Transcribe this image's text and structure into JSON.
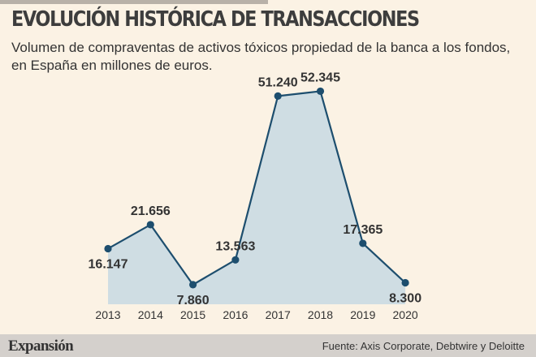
{
  "header": {
    "title": "EVOLUCIÓN HISTÓRICA DE TRANSACCIONES",
    "subtitle": "Volumen de compraventas de activos tóxicos propiedad de la banca a los fondos, en España en millones de euros."
  },
  "footer": {
    "logo": "Expansión",
    "source": "Fuente: Axis Corporate, Debtwire y Deloitte"
  },
  "colors": {
    "background": "#fbf2e4",
    "area_fill": "#cfdde3",
    "line": "#1d4e6e",
    "marker": "#1d4e6e",
    "footer_bg": "#d4d0cc"
  },
  "chart_data": {
    "type": "area",
    "title": "EVOLUCIÓN HISTÓRICA DE TRANSACCIONES",
    "xlabel": "",
    "ylabel": "",
    "categories": [
      "2013",
      "2014",
      "2015",
      "2016",
      "2017",
      "2018",
      "2019",
      "2020"
    ],
    "values": [
      16147,
      21656,
      7860,
      13563,
      51240,
      52345,
      17365,
      8300
    ],
    "labels": [
      "16.147",
      "21.656",
      "7.860",
      "13.563",
      "51.240",
      "52.345",
      "17.365",
      "8.300"
    ],
    "label_positions": [
      "below",
      "above",
      "below",
      "above",
      "above",
      "above",
      "above",
      "below"
    ],
    "ylim": [
      -12000,
      56000
    ],
    "grid": false,
    "legend": "none"
  }
}
